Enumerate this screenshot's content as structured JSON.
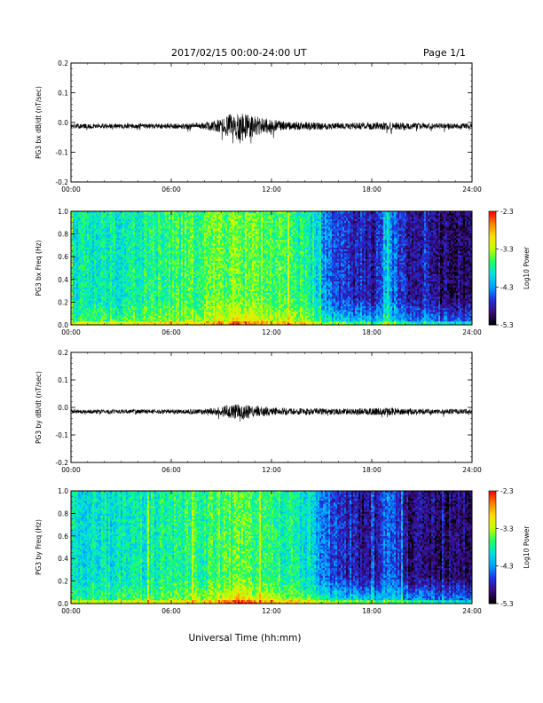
{
  "header": {
    "title": "2017/02/15  00:00-24:00 UT",
    "page": "Page 1/1"
  },
  "x_axis": {
    "title": "Universal Time (hh:mm)",
    "range": [
      0,
      24
    ],
    "ticks": [
      0,
      6,
      12,
      18,
      24
    ],
    "tick_labels": [
      "00:00",
      "06:00",
      "12:00",
      "18:00",
      "24:00"
    ]
  },
  "colorbar": {
    "title": "Log10 Power",
    "range": [
      -5.3,
      -2.3
    ],
    "tick_values": [
      -2.3,
      -3.3,
      -4.3,
      -5.3
    ],
    "tick_labels": [
      "-2.3",
      "-3.3",
      "-4.3",
      "-5.3"
    ],
    "colormap": [
      "#000000",
      "#3a0a7a",
      "#2030e0",
      "#00a0ff",
      "#00e0e0",
      "#20ff60",
      "#c0ff00",
      "#ffe000",
      "#ff8000",
      "#ff0000"
    ]
  },
  "chart_data": [
    {
      "type": "line",
      "ylabel": "PG3 bx dB/dt (nT/sec)",
      "xlabel": "",
      "xlim": [
        0,
        24
      ],
      "ylim": [
        -0.2,
        0.2
      ],
      "yticks": [
        0.2,
        0.1,
        0.0,
        -0.1,
        -0.2
      ],
      "ytick_labels": [
        "0.2",
        "0.1",
        "0.0",
        "-0.1",
        "-0.2"
      ],
      "baseline": -0.012,
      "noise_envelope": {
        "hours": [
          0,
          6,
          8,
          9,
          9.5,
          10,
          10.5,
          11,
          12,
          13,
          14.5,
          16,
          18,
          19,
          21,
          24
        ],
        "amplitude": [
          0.008,
          0.009,
          0.012,
          0.025,
          0.04,
          0.05,
          0.045,
          0.035,
          0.022,
          0.015,
          0.013,
          0.011,
          0.012,
          0.014,
          0.01,
          0.009
        ]
      },
      "min_value_approx": -0.07,
      "max_value_approx": 0.03
    },
    {
      "type": "heatmap",
      "ylabel": "PG3 bx Freq (Hz)",
      "xlabel": "",
      "xlim": [
        0,
        24
      ],
      "ylim": [
        0.0,
        1.0
      ],
      "yticks": [
        1.0,
        0.8,
        0.6,
        0.4,
        0.2,
        0.0
      ],
      "ytick_labels": [
        "1.0",
        "0.8",
        "0.6",
        "0.4",
        "0.2",
        "0.0"
      ],
      "zlim": [
        -5.3,
        -2.3
      ],
      "activity_profile": {
        "hours": [
          0,
          2,
          4,
          6,
          8,
          9,
          10,
          11,
          12,
          13,
          14,
          14.5,
          15,
          16,
          17,
          18,
          19,
          20,
          21,
          22,
          23,
          24
        ],
        "log_power_low_freq": [
          -3.5,
          -3.5,
          -3.4,
          -3.3,
          -3.2,
          -3.0,
          -2.8,
          -2.9,
          -3.1,
          -3.2,
          -3.3,
          -3.4,
          -3.6,
          -3.7,
          -3.8,
          -3.9,
          -3.8,
          -4.0,
          -4.1,
          -4.1,
          -4.2,
          -4.2
        ],
        "log_power_high_freq": [
          -3.9,
          -3.9,
          -3.8,
          -3.7,
          -3.6,
          -3.5,
          -3.5,
          -3.5,
          -3.6,
          -3.7,
          -3.8,
          -3.9,
          -4.3,
          -4.6,
          -4.8,
          -4.9,
          -4.3,
          -4.8,
          -4.9,
          -5.0,
          -5.0,
          -5.0
        ]
      }
    },
    {
      "type": "line",
      "ylabel": "PG3 by dB/dt (nT/sec)",
      "xlabel": "",
      "xlim": [
        0,
        24
      ],
      "ylim": [
        -0.2,
        0.2
      ],
      "yticks": [
        0.2,
        0.1,
        0.0,
        -0.1,
        -0.2
      ],
      "ytick_labels": [
        "0.2",
        "0.1",
        "0.0",
        "-0.1",
        "-0.2"
      ],
      "baseline": -0.015,
      "noise_envelope": {
        "hours": [
          0,
          6,
          8,
          9,
          9.5,
          10,
          10.5,
          11,
          12,
          13,
          14.5,
          16,
          18,
          19,
          21,
          24
        ],
        "amplitude": [
          0.007,
          0.008,
          0.01,
          0.018,
          0.028,
          0.03,
          0.028,
          0.022,
          0.015,
          0.012,
          0.012,
          0.011,
          0.013,
          0.015,
          0.01,
          0.009
        ]
      },
      "min_value_approx": -0.05,
      "max_value_approx": 0.025
    },
    {
      "type": "heatmap",
      "ylabel": "PG3 by Freq (Hz)",
      "xlabel": "Universal Time (hh:mm)",
      "xlim": [
        0,
        24
      ],
      "ylim": [
        0.0,
        1.0
      ],
      "yticks": [
        1.0,
        0.8,
        0.6,
        0.4,
        0.2,
        0.0
      ],
      "ytick_labels": [
        "1.0",
        "0.8",
        "0.6",
        "0.4",
        "0.2",
        "0.0"
      ],
      "zlim": [
        -5.3,
        -2.3
      ],
      "activity_profile": {
        "hours": [
          0,
          2,
          4,
          6,
          8,
          9,
          10,
          11,
          12,
          13,
          14,
          14.5,
          15,
          16,
          17,
          18,
          19,
          20,
          21,
          22,
          23,
          24
        ],
        "log_power_low_freq": [
          -3.6,
          -3.6,
          -3.5,
          -3.4,
          -3.3,
          -3.0,
          -2.7,
          -2.8,
          -3.0,
          -3.2,
          -3.3,
          -3.4,
          -3.5,
          -3.6,
          -3.7,
          -3.8,
          -3.8,
          -3.9,
          -4.0,
          -4.1,
          -4.1,
          -4.2
        ],
        "log_power_high_freq": [
          -4.0,
          -4.0,
          -3.9,
          -3.8,
          -3.7,
          -3.6,
          -3.6,
          -3.6,
          -3.7,
          -3.8,
          -3.9,
          -4.0,
          -4.4,
          -4.7,
          -4.9,
          -5.0,
          -4.4,
          -4.9,
          -5.0,
          -5.0,
          -5.0,
          -5.0
        ]
      }
    }
  ]
}
